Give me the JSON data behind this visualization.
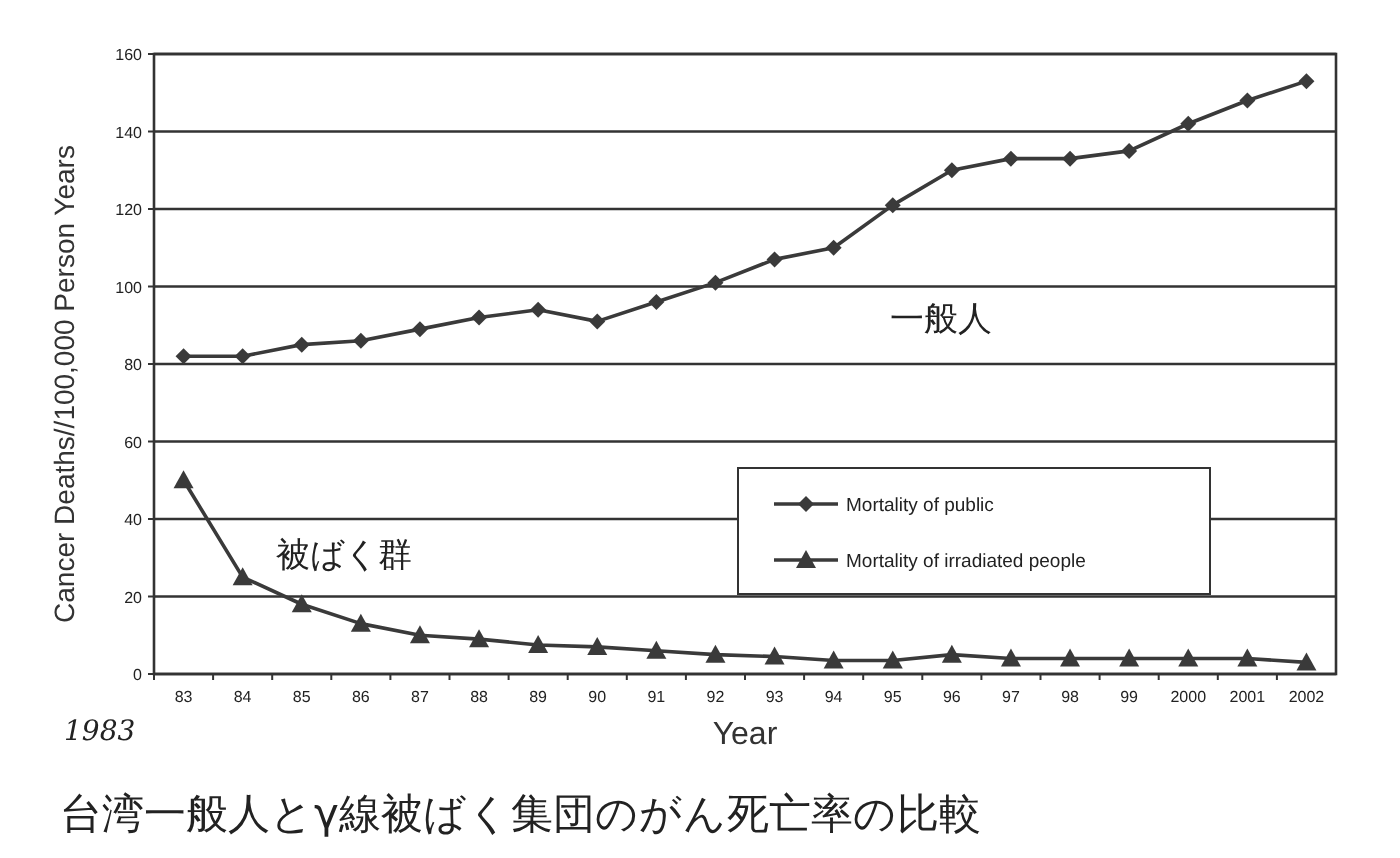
{
  "chart_data": {
    "type": "line",
    "title": "台湾一般人とγ線被ばく集団のがん死亡率の比較",
    "xlabel": "Year",
    "ylabel": "Cancer Deaths//100,000 Person Years",
    "categories": [
      "83",
      "84",
      "85",
      "86",
      "87",
      "88",
      "89",
      "90",
      "91",
      "92",
      "93",
      "94",
      "95",
      "96",
      "97",
      "98",
      "99",
      "2000",
      "2001",
      "2002"
    ],
    "series": [
      {
        "name": "Mortality of public",
        "color": "#3a3a3a",
        "marker": "diamond",
        "values": [
          82,
          82,
          85,
          86,
          89,
          92,
          94,
          91,
          96,
          101,
          107,
          110,
          121,
          130,
          133,
          133,
          135,
          142,
          148,
          153
        ]
      },
      {
        "name": "Mortality of irradiated people",
        "color": "#3a3a3a",
        "marker": "triangle",
        "values": [
          50,
          25,
          18,
          13,
          10,
          9,
          7.5,
          7,
          6,
          5,
          4.5,
          3.5,
          3.5,
          5,
          4,
          4,
          4,
          4,
          4,
          3
        ]
      }
    ],
    "ylim": [
      0,
      160
    ],
    "yticks": [
      0,
      20,
      40,
      60,
      80,
      100,
      120,
      140,
      160
    ],
    "grid": "y",
    "legend": "right",
    "annotations": [
      "一般人",
      "被ばく群",
      "1983"
    ]
  }
}
